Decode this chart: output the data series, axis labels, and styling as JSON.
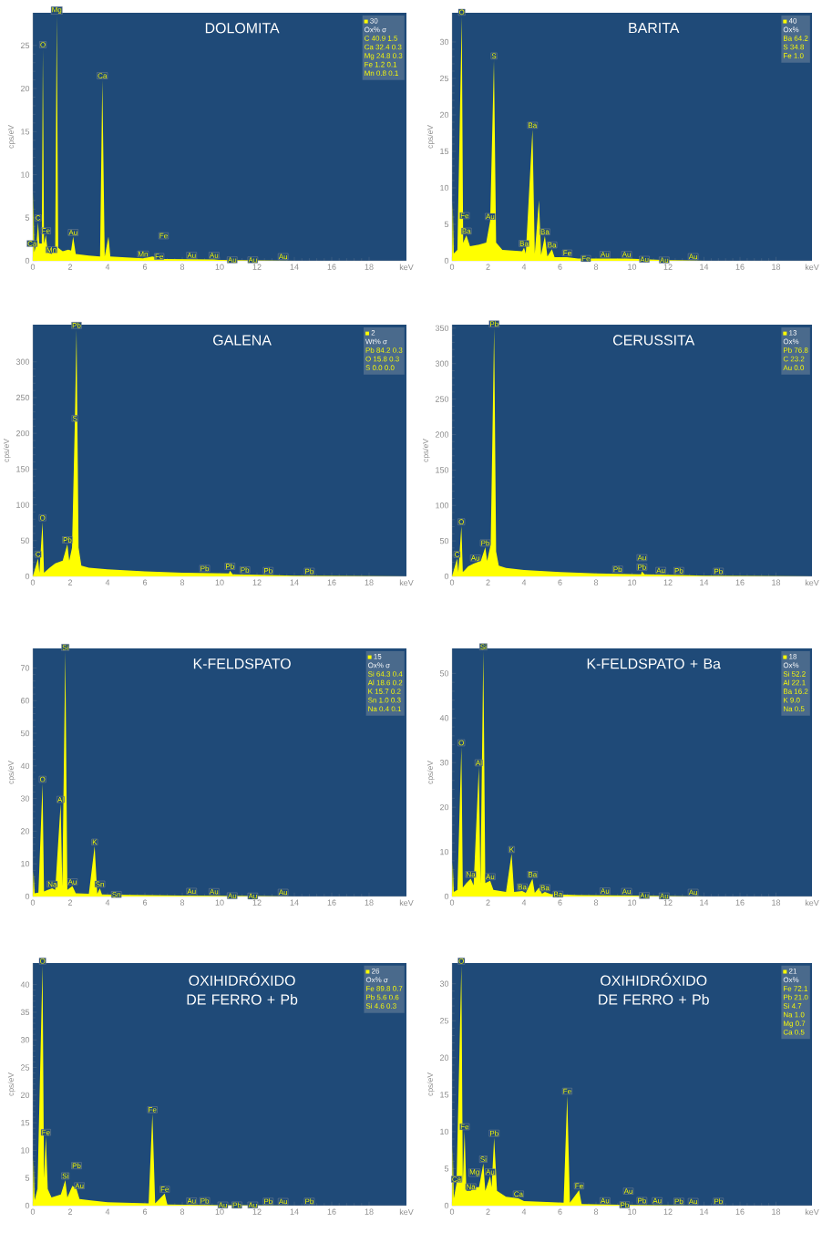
{
  "chart_data": [
    {
      "type": "area",
      "title": "DOLOMITA",
      "xlabel": "keV",
      "ylabel": "cps/eV",
      "color": "#ffff00",
      "xlim": [
        0,
        20
      ],
      "ylim": [
        0,
        28.8
      ],
      "xticks": [
        0,
        2,
        4,
        6,
        8,
        10,
        12,
        14,
        16,
        18
      ],
      "yticks": [
        0,
        5,
        10,
        15,
        20,
        25
      ],
      "x": [
        0,
        0.03,
        0.08,
        0.2,
        0.28,
        0.35,
        0.48,
        0.54,
        0.6,
        0.7,
        0.8,
        1.0,
        1.2,
        1.28,
        1.36,
        1.6,
        1.9,
        2.05,
        2.16,
        2.3,
        3.0,
        3.6,
        3.72,
        3.85,
        4.05,
        4.15,
        5.0,
        5.9,
        6.4,
        7.0,
        9.7,
        10,
        14,
        20
      ],
      "values": [
        0,
        8,
        1,
        2,
        4.5,
        2,
        2,
        24.6,
        2,
        3,
        1,
        0.8,
        1.5,
        28.5,
        1.5,
        1.1,
        1.3,
        1.2,
        2.8,
        0.8,
        0.6,
        0.5,
        21,
        0.5,
        2.8,
        0.5,
        0.4,
        0.3,
        0.5,
        0.2,
        0.15,
        0.1,
        0,
        0
      ],
      "annotations": [
        "30",
        "Ox% σ",
        "C 40.9 1.5",
        "Ca 32.4 0.3",
        "Mg 24.8 0.3",
        "Fe 1.2 0.1",
        "Mn 0.8 0.1",
        {
          "text": "C",
          "x": 0.28,
          "y": 4.5
        },
        {
          "text": "O",
          "x": 0.54,
          "y": 24.6
        },
        {
          "text": "Mg",
          "x": 1.28,
          "y": 28.5
        },
        {
          "text": "Fe",
          "x": 0.7,
          "y": 3
        },
        {
          "text": "Mn",
          "x": 1.0,
          "y": 0.8
        },
        {
          "text": "Ca",
          "x": 0.35,
          "y": 2
        },
        {
          "text": "Au",
          "x": 2.16,
          "y": 2.8
        },
        {
          "text": "Ca",
          "x": 3.72,
          "y": 21
        },
        {
          "text": "Mn",
          "x": 5.9,
          "y": 0.3
        },
        {
          "text": "Fe",
          "x": 6.4,
          "y": 0.5
        },
        {
          "text": "Fe",
          "x": 7.0,
          "y": 0.2
        },
        {
          "text": "Au",
          "x": 8.5,
          "y": 0.15
        },
        {
          "text": "Au",
          "x": 9.7,
          "y": 0.15
        },
        {
          "text": "Au",
          "x": 10.3,
          "y": 0.1
        },
        {
          "text": "Au",
          "x": 11.4,
          "y": 0.1
        },
        {
          "text": "Au",
          "x": 13.4,
          "y": 0
        }
      ]
    },
    {
      "type": "area",
      "title": "BARITA",
      "xlabel": "keV",
      "ylabel": "cps/eV",
      "color": "#ffff00",
      "xlim": [
        0,
        20
      ],
      "ylim": [
        0,
        34
      ],
      "xticks": [
        0,
        2,
        4,
        6,
        8,
        10,
        12,
        14,
        16,
        18
      ],
      "yticks": [
        0,
        5,
        10,
        15,
        20,
        25,
        30
      ],
      "x": [
        0,
        0.04,
        0.1,
        0.3,
        0.54,
        0.62,
        0.8,
        1.0,
        1.5,
        1.9,
        2.12,
        2.33,
        2.45,
        2.8,
        3.9,
        4.0,
        4.1,
        4.47,
        4.6,
        4.83,
        4.95,
        5.16,
        5.3,
        5.55,
        5.7,
        6.4,
        7.0,
        9.7,
        12,
        14,
        20
      ],
      "values": [
        0,
        8.1,
        1,
        1.5,
        33.5,
        2.5,
        3.5,
        2,
        2.2,
        2.5,
        5.5,
        27.5,
        2.5,
        1.5,
        1.3,
        1.8,
        1.0,
        18,
        1.0,
        8.3,
        0.8,
        3.4,
        0.6,
        1.6,
        0.5,
        0.5,
        0.3,
        0.3,
        0.1,
        0,
        0
      ],
      "annotations": [
        "40",
        "Ox%",
        "Ba 64.2",
        "S 34.8",
        "Fe 1.0",
        {
          "text": "O",
          "x": 0.54,
          "y": 33.5
        },
        {
          "text": "Ba",
          "x": 0.8,
          "y": 3.5
        },
        {
          "text": "Fe",
          "x": 0.7,
          "y": 3
        },
        {
          "text": "Au",
          "x": 2.12,
          "y": 5.5
        },
        {
          "text": "S",
          "x": 2.33,
          "y": 27.5
        },
        {
          "text": "Ba",
          "x": 4.0,
          "y": 1.8
        },
        {
          "text": "Ba",
          "x": 4.47,
          "y": 18
        },
        {
          "text": "Ba",
          "x": 5.16,
          "y": 3.4
        },
        {
          "text": "Ba",
          "x": 5.55,
          "y": 1.6
        },
        {
          "text": "Fe",
          "x": 6.4,
          "y": 0.5
        },
        {
          "text": "Fe",
          "x": 7.06,
          "y": 0.3
        },
        {
          "text": "Au",
          "x": 8.5,
          "y": 0.3
        },
        {
          "text": "Au",
          "x": 9.7,
          "y": 0.3
        },
        {
          "text": "Au",
          "x": 10.3,
          "y": 0.2
        },
        {
          "text": "Au",
          "x": 11.4,
          "y": 0.1
        },
        {
          "text": "Au",
          "x": 13.4,
          "y": 0
        }
      ]
    },
    {
      "type": "area",
      "title": "GALENA",
      "xlabel": "keV",
      "ylabel": "cps/eV",
      "color": "#ffff00",
      "xlim": [
        0,
        20
      ],
      "ylim": [
        0,
        352
      ],
      "xticks": [
        0,
        2,
        4,
        6,
        8,
        10,
        12,
        14,
        16,
        18
      ],
      "yticks": [
        0,
        50,
        100,
        150,
        200,
        250,
        300
      ],
      "x": [
        0,
        0.28,
        0.35,
        0.52,
        0.6,
        0.9,
        1.2,
        1.6,
        1.85,
        1.95,
        2.1,
        2.25,
        2.34,
        2.45,
        2.6,
        3.0,
        4.0,
        6.0,
        8,
        10.5,
        10.55,
        10.7,
        12.6,
        14,
        16,
        20
      ],
      "values": [
        0,
        25,
        5,
        76,
        5,
        12,
        18,
        22,
        45,
        22,
        40,
        215,
        345,
        40,
        15,
        12,
        10,
        7,
        5,
        4,
        8,
        3,
        2,
        1,
        0.5,
        0
      ],
      "annotations": [
        "2",
        "Wt% σ",
        "Pb 84.2 0.3",
        "O 15.8 0.3",
        "S 0.0 0.0",
        {
          "text": "C",
          "x": 0.28,
          "y": 25
        },
        {
          "text": "O",
          "x": 0.52,
          "y": 76
        },
        {
          "text": "Pb",
          "x": 1.85,
          "y": 45
        },
        {
          "text": "S",
          "x": 2.25,
          "y": 215
        },
        {
          "text": "Pb",
          "x": 2.34,
          "y": 345
        },
        {
          "text": "Pb",
          "x": 9.2,
          "y": 5
        },
        {
          "text": "Pb",
          "x": 10.55,
          "y": 8
        },
        {
          "text": "Pb",
          "x": 11.35,
          "y": 3
        },
        {
          "text": "Pb",
          "x": 12.6,
          "y": 2
        },
        {
          "text": "Pb",
          "x": 14.8,
          "y": 1
        }
      ]
    },
    {
      "type": "area",
      "title": "CERUSSITA",
      "xlabel": "keV",
      "ylabel": "cps/eV",
      "color": "#ffff00",
      "xlim": [
        0,
        20
      ],
      "ylim": [
        0,
        355
      ],
      "xticks": [
        0,
        2,
        4,
        6,
        8,
        10,
        12,
        14,
        16,
        18
      ],
      "yticks": [
        0,
        50,
        100,
        150,
        200,
        250,
        300,
        350
      ],
      "x": [
        0,
        0.28,
        0.35,
        0.52,
        0.6,
        0.9,
        1.2,
        1.6,
        1.85,
        1.95,
        2.15,
        2.34,
        2.45,
        2.6,
        3,
        4,
        6,
        8,
        10.5,
        10.55,
        10.7,
        12.6,
        14,
        16,
        20
      ],
      "values": [
        0,
        25,
        6,
        71,
        6,
        14,
        18,
        22,
        41,
        22,
        45,
        350,
        35,
        15,
        12,
        9,
        6,
        4,
        3,
        7,
        3,
        2,
        1,
        0.5,
        0
      ],
      "annotations": [
        "13",
        "Ox%",
        "Pb 76.8",
        "C 23.2",
        "Au 0.0",
        {
          "text": "C",
          "x": 0.28,
          "y": 25
        },
        {
          "text": "O",
          "x": 0.52,
          "y": 71
        },
        {
          "text": "Au",
          "x": 1.3,
          "y": 20
        },
        {
          "text": "Pb",
          "x": 1.85,
          "y": 41
        },
        {
          "text": "Pb",
          "x": 2.34,
          "y": 350
        },
        {
          "text": "Pb",
          "x": 9.2,
          "y": 4
        },
        {
          "text": "Pb",
          "x": 10.55,
          "y": 7
        },
        {
          "text": "Au",
          "x": 10.55,
          "y": 7
        },
        {
          "text": "Au",
          "x": 11.6,
          "y": 2.5
        },
        {
          "text": "Pb",
          "x": 12.6,
          "y": 2
        },
        {
          "text": "Pb",
          "x": 14.8,
          "y": 1
        }
      ]
    },
    {
      "type": "area",
      "title": "K-FELDSPATO",
      "xlabel": "keV",
      "ylabel": "cps/eV",
      "color": "#ffff00",
      "xlim": [
        0,
        20
      ],
      "ylim": [
        0,
        76
      ],
      "xticks": [
        0,
        2,
        4,
        6,
        8,
        10,
        12,
        14,
        16,
        18
      ],
      "yticks": [
        0,
        10,
        20,
        30,
        40,
        50,
        60,
        70
      ],
      "x": [
        0,
        0.04,
        0.1,
        0.3,
        0.52,
        0.6,
        0.8,
        1.04,
        1.2,
        1.49,
        1.58,
        1.74,
        1.85,
        2.12,
        2.3,
        3.0,
        3.31,
        3.45,
        3.59,
        3.7,
        5,
        8,
        10,
        14,
        20
      ],
      "values": [
        0,
        7.8,
        1,
        1.2,
        34.6,
        1.5,
        2,
        2.5,
        2,
        28.4,
        3,
        75,
        2,
        3.2,
        1,
        0.8,
        15.4,
        0.8,
        2.5,
        0.6,
        0.5,
        0.3,
        0.2,
        0,
        0
      ],
      "annotations": [
        "15",
        "Ox% σ",
        "Si 64.3 0.4",
        "Al 18.6 0.2",
        "K 15.7 0.2",
        "Sn 1.0 0.3",
        "Na 0.4 0.1",
        {
          "text": "O",
          "x": 0.52,
          "y": 34.6
        },
        {
          "text": "Na",
          "x": 1.04,
          "y": 2.5
        },
        {
          "text": "Al",
          "x": 1.49,
          "y": 28.4
        },
        {
          "text": "Si",
          "x": 1.74,
          "y": 75
        },
        {
          "text": "Au",
          "x": 2.12,
          "y": 3.2
        },
        {
          "text": "K",
          "x": 3.31,
          "y": 15.4
        },
        {
          "text": "Sn",
          "x": 3.59,
          "y": 2.5
        },
        {
          "text": "Sn",
          "x": 4.1,
          "y": 0.6
        },
        {
          "text": "Au",
          "x": 8.5,
          "y": 0.3
        },
        {
          "text": "Au",
          "x": 9.7,
          "y": 0.2
        },
        {
          "text": "Au",
          "x": 10.3,
          "y": 0.2
        },
        {
          "text": "Au",
          "x": 11.4,
          "y": 0.1
        },
        {
          "text": "Au",
          "x": 13.4,
          "y": 0
        }
      ]
    },
    {
      "type": "area",
      "title": "K-FELDSPATO + Ba",
      "xlabel": "keV",
      "ylabel": "cps/eV",
      "color": "#ffff00",
      "xlim": [
        0,
        20
      ],
      "ylim": [
        0,
        55.6
      ],
      "xticks": [
        0,
        2,
        4,
        6,
        8,
        10,
        12,
        14,
        16,
        18
      ],
      "yticks": [
        0,
        10,
        20,
        30,
        40,
        50
      ],
      "x": [
        0,
        0.04,
        0.1,
        0.3,
        0.52,
        0.6,
        0.8,
        1.04,
        1.2,
        1.49,
        1.58,
        1.74,
        1.85,
        2.12,
        2.3,
        3.0,
        3.31,
        3.45,
        3.9,
        4.1,
        4.47,
        4.6,
        4.83,
        5.0,
        5.16,
        5.5,
        7,
        10,
        14,
        20
      ],
      "values": [
        0,
        7.8,
        1,
        1.5,
        33.5,
        2,
        3,
        4,
        2.5,
        29,
        3,
        55,
        3,
        3.5,
        1.5,
        1,
        9.6,
        1,
        1.2,
        0.8,
        4,
        0.8,
        2,
        0.6,
        1,
        0.5,
        0.3,
        0.2,
        0,
        0
      ],
      "annotations": [
        "18",
        "Ox%",
        "Si 52.2",
        "Al 22.1",
        "Ba 16.2",
        "K 9.0",
        "Na 0.5",
        {
          "text": "O",
          "x": 0.52,
          "y": 33.5
        },
        {
          "text": "Na",
          "x": 1.04,
          "y": 4
        },
        {
          "text": "Al",
          "x": 1.49,
          "y": 29
        },
        {
          "text": "Si",
          "x": 1.74,
          "y": 55
        },
        {
          "text": "Au",
          "x": 2.12,
          "y": 3.5
        },
        {
          "text": "K",
          "x": 3.31,
          "y": 9.6
        },
        {
          "text": "Ba",
          "x": 3.9,
          "y": 1.2
        },
        {
          "text": "Ba",
          "x": 4.47,
          "y": 4
        },
        {
          "text": "Ba",
          "x": 5.16,
          "y": 1
        },
        {
          "text": "Ba",
          "x": 5.5,
          "y": 0.5
        },
        {
          "text": "Au",
          "x": 8.5,
          "y": 0.3
        },
        {
          "text": "Au",
          "x": 9.7,
          "y": 0.2
        },
        {
          "text": "Au",
          "x": 10.3,
          "y": 0.2
        },
        {
          "text": "Au",
          "x": 11.4,
          "y": 0.1
        },
        {
          "text": "Au",
          "x": 13.4,
          "y": 0
        }
      ]
    },
    {
      "type": "area",
      "title": "OXIHIDRÓXIDO DE FERRO + Pb",
      "xlabel": "keV",
      "ylabel": "cps/eV",
      "color": "#ffff00",
      "xlim": [
        0,
        20
      ],
      "ylim": [
        0,
        43.9
      ],
      "xticks": [
        0,
        2,
        4,
        6,
        8,
        10,
        12,
        14,
        16,
        18
      ],
      "yticks": [
        0,
        5,
        10,
        15,
        20,
        25,
        30,
        35,
        40
      ],
      "x": [
        0,
        0.04,
        0.1,
        0.25,
        0.52,
        0.6,
        0.7,
        0.8,
        1.0,
        1.5,
        1.74,
        1.85,
        2.12,
        2.34,
        2.5,
        3.0,
        4.0,
        6.2,
        6.4,
        6.55,
        7.06,
        7.2,
        10,
        14,
        20
      ],
      "values": [
        0,
        8.7,
        1,
        3,
        43.5,
        5,
        12.5,
        3,
        1.5,
        2,
        4.6,
        1.5,
        3.6,
        3,
        1.2,
        1,
        0.6,
        0.4,
        16.6,
        0.4,
        2.2,
        0.2,
        0.1,
        0,
        0
      ],
      "annotations": [
        "26",
        "Ox% σ",
        "Fe 89.8 0.7",
        "Pb 5.6 0.6",
        "Si 4.6 0.3",
        {
          "text": "O",
          "x": 0.52,
          "y": 43.5
        },
        {
          "text": "Fe",
          "x": 0.7,
          "y": 12.5
        },
        {
          "text": "Si",
          "x": 1.74,
          "y": 4.6
        },
        {
          "text": "Au",
          "x": 2.12,
          "y": 3.6
        },
        {
          "text": "Pb",
          "x": 2.34,
          "y": 3
        },
        {
          "text": "Fe",
          "x": 6.4,
          "y": 16.6
        },
        {
          "text": "Fe",
          "x": 7.06,
          "y": 2.2
        },
        {
          "text": "Au",
          "x": 8.5,
          "y": 0.1
        },
        {
          "text": "Pb",
          "x": 9.2,
          "y": 0.1
        },
        {
          "text": "Au",
          "x": 9.8,
          "y": 0.1
        },
        {
          "text": "Pb",
          "x": 10.55,
          "y": 0.1
        },
        {
          "text": "Au",
          "x": 11.4,
          "y": 0.1
        },
        {
          "text": "Pb",
          "x": 12.6,
          "y": 0
        },
        {
          "text": "Au",
          "x": 13.4,
          "y": 0
        },
        {
          "text": "Pb",
          "x": 14.8,
          "y": 0
        }
      ]
    },
    {
      "type": "area",
      "title": "OXIHIDRÓXIDO DE FERRO + Pb",
      "xlabel": "keV",
      "ylabel": "cps/eV",
      "color": "#ffff00",
      "xlim": [
        0,
        20
      ],
      "ylim": [
        0,
        32.8
      ],
      "xticks": [
        0,
        2,
        4,
        6,
        8,
        10,
        12,
        14,
        16,
        18
      ],
      "yticks": [
        0,
        5,
        10,
        15,
        20,
        25,
        30
      ],
      "x": [
        0,
        0.04,
        0.1,
        0.25,
        0.52,
        0.6,
        0.7,
        0.8,
        1.04,
        1.25,
        1.5,
        1.74,
        1.85,
        2.12,
        2.2,
        2.34,
        2.5,
        3.0,
        3.69,
        4.0,
        6.2,
        6.4,
        6.55,
        7.06,
        7.2,
        10,
        14,
        20
      ],
      "values": [
        0,
        8,
        1,
        3,
        32.5,
        3,
        10.1,
        2,
        2,
        2.5,
        2.5,
        5.7,
        2,
        4,
        2.5,
        9.2,
        2,
        1.2,
        1,
        0.6,
        0.4,
        14.9,
        0.4,
        2.1,
        0.2,
        0.1,
        0,
        0
      ],
      "annotations": [
        "21",
        "Ox%",
        "Fe 72.1",
        "Pb 21.0",
        "Si 4.7",
        "Na 1.0",
        "Mg 0.7",
        "Ca 0.5",
        {
          "text": "O",
          "x": 0.52,
          "y": 32.5
        },
        {
          "text": "Ca",
          "x": 0.25,
          "y": 3
        },
        {
          "text": "Fe",
          "x": 0.7,
          "y": 10.1
        },
        {
          "text": "Na",
          "x": 1.04,
          "y": 2
        },
        {
          "text": "Mg",
          "x": 1.25,
          "y": 2.5
        },
        {
          "text": "Si",
          "x": 1.74,
          "y": 5.7
        },
        {
          "text": "Au",
          "x": 2.12,
          "y": 4
        },
        {
          "text": "Pb",
          "x": 2.34,
          "y": 9.2
        },
        {
          "text": "Ca",
          "x": 3.69,
          "y": 1
        },
        {
          "text": "Fe",
          "x": 6.4,
          "y": 14.9
        },
        {
          "text": "Fe",
          "x": 7.06,
          "y": 2.1
        },
        {
          "text": "Au",
          "x": 8.5,
          "y": 0.1
        },
        {
          "text": "Pb",
          "x": 9.2,
          "y": 0.1
        },
        {
          "text": "Au",
          "x": 9.8,
          "y": 0.1
        },
        {
          "text": "Pb",
          "x": 10.55,
          "y": 0.1
        },
        {
          "text": "Au",
          "x": 11.4,
          "y": 0.1
        },
        {
          "text": "Pb",
          "x": 12.6,
          "y": 0
        },
        {
          "text": "Au",
          "x": 13.4,
          "y": 0
        },
        {
          "text": "Pb",
          "x": 14.8,
          "y": 0
        }
      ]
    }
  ]
}
